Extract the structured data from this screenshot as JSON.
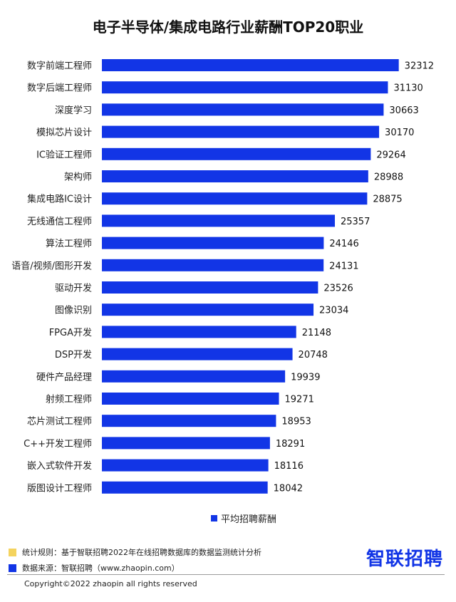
{
  "title": "电子半导体/集成电路行业薪酬TOP20职业",
  "colors": {
    "bar": "#1235e6",
    "note_yellow": "#f4d35e",
    "note_blue": "#1235e6",
    "brand": "#1235e6"
  },
  "chart_data": {
    "type": "bar",
    "orientation": "horizontal",
    "title": "电子半导体/集成电路行业薪酬TOP20职业",
    "categories": [
      "数字前端工程师",
      "数字后端工程师",
      "深度学习",
      "模拟芯片设计",
      "IC验证工程师",
      "架构师",
      "集成电路IC设计",
      "无线通信工程师",
      "算法工程师",
      "语音/视频/图形开发",
      "驱动开发",
      "图像识别",
      "FPGA开发",
      "DSP开发",
      "硬件产品经理",
      "射频工程师",
      "芯片测试工程师",
      "C++开发工程师",
      "嵌入式软件开发",
      "版图设计工程师"
    ],
    "series": [
      {
        "name": "平均招聘薪酬",
        "values": [
          32312,
          31130,
          30663,
          30170,
          29264,
          28988,
          28875,
          25357,
          24146,
          24131,
          23526,
          23034,
          21148,
          20748,
          19939,
          19271,
          18953,
          18291,
          18116,
          18042
        ]
      }
    ],
    "xlim": [
      0,
      33500
    ],
    "grid": false,
    "legend": "bottom"
  },
  "legend": {
    "label": "平均招聘薪酬"
  },
  "notes": [
    {
      "text": "统计规则：基于智联招聘2022年在线招聘数据库的数据监测统计分析"
    },
    {
      "text": "数据来源：智联招聘（www.zhaopin.com）"
    }
  ],
  "brand": "智联招聘",
  "copyright": "Copyright©2022 zhaopin all rights reserved"
}
